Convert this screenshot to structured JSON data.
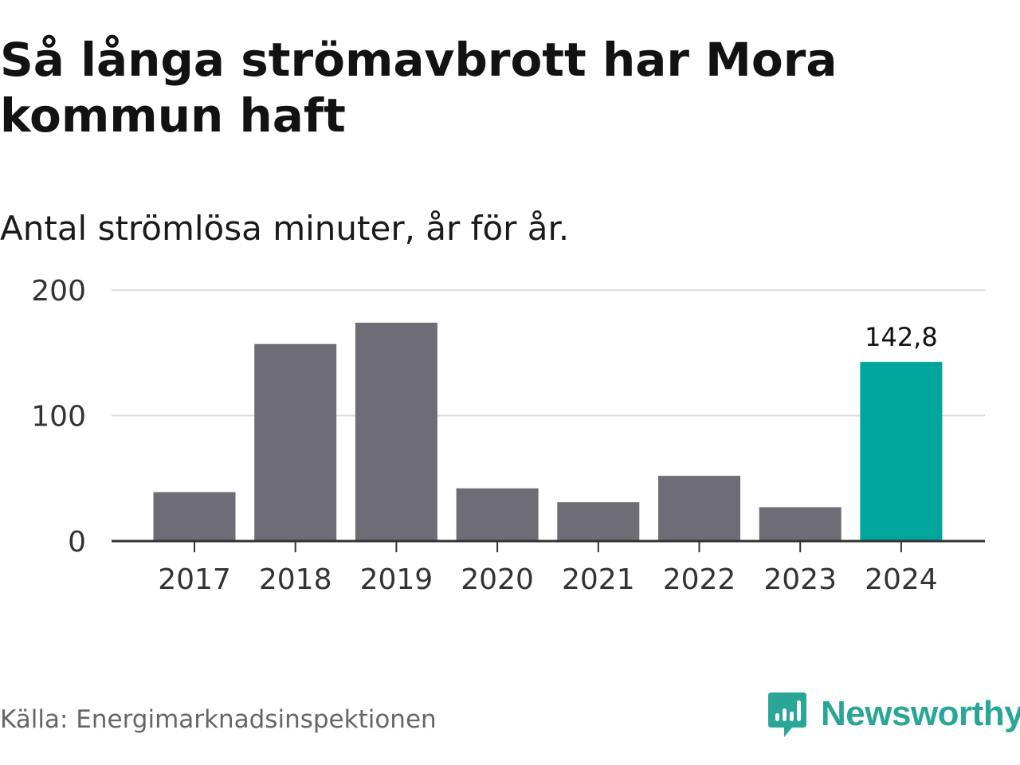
{
  "title": "Så långa strömavbrott har Mora kommun haft",
  "subtitle": "Antal strömlösa minuter, år för år.",
  "source": "Källa: Energimarknadsinspektionen",
  "logo": {
    "text": "Newsworthy",
    "icon": "newsworthy-logo-icon",
    "color": "#2aa698"
  },
  "chart_data": {
    "type": "bar",
    "title": "Så långa strömavbrott har Mora kommun haft",
    "subtitle": "Antal strömlösa minuter, år för år.",
    "categories": [
      "2017",
      "2018",
      "2019",
      "2020",
      "2021",
      "2022",
      "2023",
      "2024"
    ],
    "values": [
      39,
      157,
      174,
      42,
      31,
      52,
      27,
      142.8
    ],
    "yticks": [
      "0",
      "100",
      "200"
    ],
    "ylim": [
      0,
      200
    ],
    "grid": true,
    "bar_color": "#6e6c74",
    "highlight_color": "#00a59b",
    "highlight_index": 7,
    "data_labels": [
      {
        "index": 7,
        "text": "142,8"
      }
    ]
  }
}
